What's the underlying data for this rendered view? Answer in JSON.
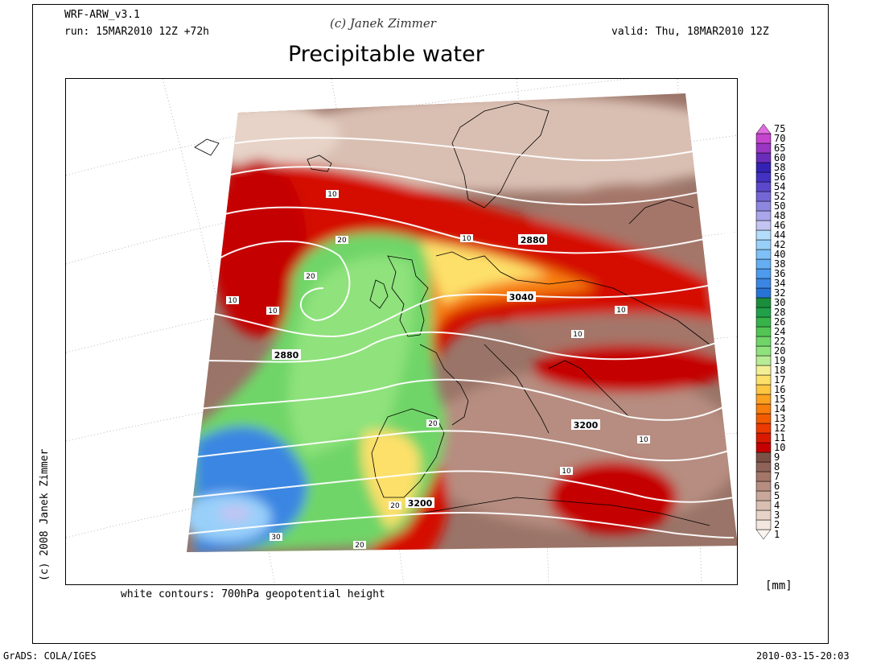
{
  "header": {
    "model": "WRF-ARW_v3.1",
    "run": "run: 15MAR2010 12Z +72h",
    "copyright": "(c) Janek Zimmer",
    "valid": "valid: Thu, 18MAR2010 12Z",
    "title": "Precipitable water"
  },
  "side_credit": "(c) 2008 Janek Zimmer",
  "contour_note": "white contours: 700hPa geopotential height",
  "unit": "[mm]",
  "footer": {
    "left": "GrADS: COLA/IGES",
    "right": "2010-03-15-20:03"
  },
  "colorbar": {
    "labels": [
      "1",
      "2",
      "3",
      "4",
      "5",
      "6",
      "7",
      "8",
      "9",
      "10",
      "11",
      "12",
      "13",
      "14",
      "15",
      "16",
      "17",
      "18",
      "19",
      "20",
      "22",
      "24",
      "26",
      "28",
      "30",
      "32",
      "34",
      "36",
      "38",
      "40",
      "42",
      "44",
      "46",
      "48",
      "50",
      "52",
      "54",
      "56",
      "58",
      "60",
      "65",
      "70",
      "75"
    ],
    "colors": [
      "#fbf4ee",
      "#f2e6de",
      "#e7d3c8",
      "#d9bfb2",
      "#c9a79a",
      "#b68d80",
      "#a47669",
      "#8f6358",
      "#7b5147",
      "#c40000",
      "#da1a00",
      "#ec3a00",
      "#f35b00",
      "#f77d0c",
      "#fba120",
      "#fcc542",
      "#fde06a",
      "#f3ef96",
      "#b8ec94",
      "#8fe27c",
      "#6fd567",
      "#52c554",
      "#36b44a",
      "#20a14a",
      "#1a8e3c",
      "#2874d6",
      "#3a86e2",
      "#4d9aee",
      "#64aef4",
      "#7ec0f7",
      "#99d0fa",
      "#b4dcfb",
      "#c3c4f2",
      "#a9a6ea",
      "#8e87e0",
      "#7566d6",
      "#5b48cb",
      "#4332c2",
      "#3422b5",
      "#6a2dbb",
      "#9a35c4",
      "#c545cf",
      "#e06ce0"
    ]
  },
  "contour_labels": [
    {
      "text": "10",
      "big": false
    },
    {
      "text": "20",
      "big": false
    },
    {
      "text": "20",
      "big": false
    },
    {
      "text": "10",
      "big": false
    },
    {
      "text": "10",
      "big": false
    },
    {
      "text": "2880",
      "big": true
    },
    {
      "text": "10",
      "big": false
    },
    {
      "text": "2880",
      "big": true
    },
    {
      "text": "3040",
      "big": true
    },
    {
      "text": "10",
      "big": false
    },
    {
      "text": "10",
      "big": false
    },
    {
      "text": "20",
      "big": false
    },
    {
      "text": "3200",
      "big": true
    },
    {
      "text": "10",
      "big": false
    },
    {
      "text": "10",
      "big": false
    },
    {
      "text": "3200",
      "big": true
    },
    {
      "text": "20",
      "big": false
    },
    {
      "text": "20",
      "big": false
    },
    {
      "text": "30",
      "big": false
    }
  ]
}
